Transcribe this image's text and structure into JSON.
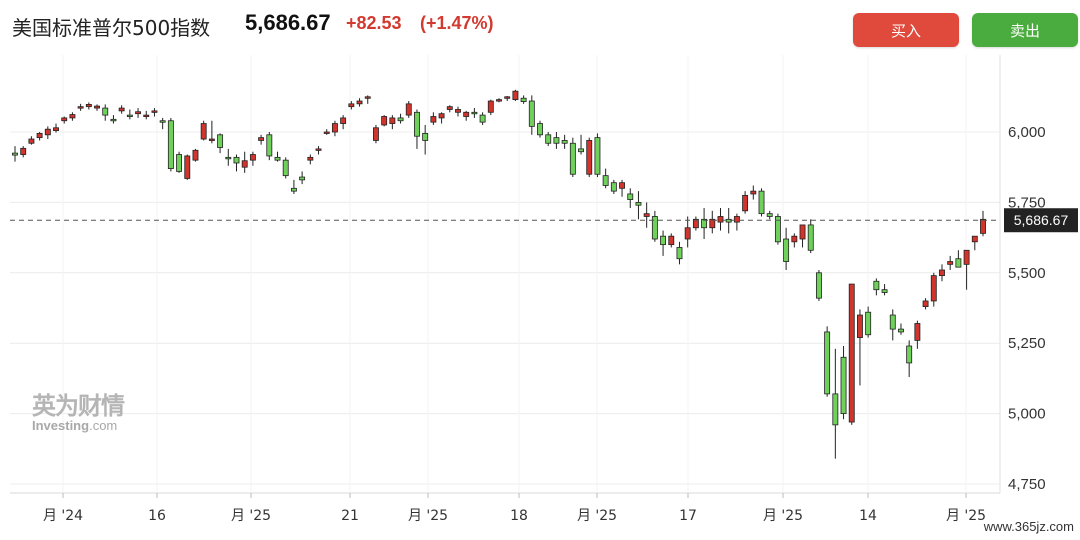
{
  "header": {
    "title": "美国标准普尔500指数",
    "price": "5,686.67",
    "change": "+82.53",
    "change_pct": "(+1.47%)",
    "up_color": "#d23a2f",
    "buy_label": "买入",
    "sell_label": "卖出"
  },
  "watermark": {
    "cn": "英为财情",
    "en_main": "Investing",
    "en_suffix": ".com"
  },
  "footer": {
    "site": "www.365jz.com"
  },
  "chart_data": {
    "type": "candlestick",
    "last_price_label": "5,686.67",
    "y_ticks": [
      "6,000",
      "5,750",
      "5,500",
      "5,250",
      "5,000",
      "4,750"
    ],
    "y_tick_values": [
      6000,
      5750,
      5500,
      5250,
      5000,
      4750
    ],
    "ylim": [
      4740,
      6200
    ],
    "x_tick_labels": [
      "月 '24",
      "16",
      "月 '25",
      "21",
      "月 '25",
      "18",
      "月 '25",
      "17",
      "月 '25",
      "14",
      "月 '25"
    ],
    "grid": true,
    "colors": {
      "up": "#d0342c",
      "down": "#6fd15b"
    },
    "candles": [
      [
        5925,
        5950,
        5895,
        5918
      ],
      [
        5920,
        5950,
        5910,
        5942
      ],
      [
        5960,
        5985,
        5955,
        5975
      ],
      [
        5980,
        6000,
        5970,
        5995
      ],
      [
        5990,
        6020,
        5975,
        6010
      ],
      [
        6005,
        6030,
        5998,
        6015
      ],
      [
        6040,
        6055,
        6030,
        6050
      ],
      [
        6050,
        6070,
        6040,
        6062
      ],
      [
        6085,
        6100,
        6075,
        6090
      ],
      [
        6090,
        6105,
        6080,
        6098
      ],
      [
        6085,
        6098,
        6075,
        6092
      ],
      [
        6085,
        6098,
        6040,
        6060
      ],
      [
        6045,
        6060,
        6030,
        6040
      ],
      [
        6075,
        6095,
        6065,
        6085
      ],
      [
        6060,
        6080,
        6045,
        6055
      ],
      [
        6065,
        6085,
        6050,
        6072
      ],
      [
        6055,
        6075,
        6045,
        6060
      ],
      [
        6070,
        6085,
        6055,
        6075
      ],
      [
        6040,
        6050,
        6010,
        6035
      ],
      [
        6040,
        6050,
        5860,
        5870
      ],
      [
        5920,
        5930,
        5855,
        5860
      ],
      [
        5835,
        5920,
        5830,
        5915
      ],
      [
        5900,
        5940,
        5895,
        5935
      ],
      [
        5975,
        6040,
        5970,
        6030
      ],
      [
        5970,
        6040,
        5960,
        5975
      ],
      [
        5990,
        5995,
        5925,
        5945
      ],
      [
        5910,
        5940,
        5880,
        5905
      ],
      [
        5910,
        5920,
        5860,
        5890
      ],
      [
        5875,
        5930,
        5855,
        5898
      ],
      [
        5900,
        5930,
        5880,
        5920
      ],
      [
        5970,
        5990,
        5955,
        5980
      ],
      [
        5990,
        6000,
        5900,
        5915
      ],
      [
        5910,
        5930,
        5895,
        5900
      ],
      [
        5900,
        5910,
        5835,
        5845
      ],
      [
        5800,
        5830,
        5780,
        5790
      ],
      [
        5840,
        5860,
        5815,
        5830
      ],
      [
        5900,
        5920,
        5885,
        5910
      ],
      [
        5935,
        5950,
        5920,
        5940
      ],
      [
        6000,
        6010,
        5990,
        6000
      ],
      [
        6000,
        6040,
        5985,
        6030
      ],
      [
        6030,
        6060,
        6010,
        6050
      ],
      [
        6090,
        6110,
        6080,
        6100
      ],
      [
        6100,
        6120,
        6090,
        6110
      ],
      [
        6120,
        6130,
        6100,
        6125
      ],
      [
        5970,
        6025,
        5960,
        6015
      ],
      [
        6025,
        6060,
        6020,
        6055
      ],
      [
        6030,
        6060,
        6010,
        6050
      ],
      [
        6050,
        6065,
        6030,
        6040
      ],
      [
        6060,
        6110,
        6050,
        6100
      ],
      [
        6070,
        6080,
        5940,
        5985
      ],
      [
        5995,
        6025,
        5920,
        5970
      ],
      [
        6035,
        6070,
        6025,
        6055
      ],
      [
        6050,
        6070,
        6030,
        6065
      ],
      [
        6080,
        6095,
        6070,
        6090
      ],
      [
        6070,
        6090,
        6055,
        6080
      ],
      [
        6055,
        6075,
        6040,
        6070
      ],
      [
        6070,
        6085,
        6050,
        6065
      ],
      [
        6060,
        6070,
        6025,
        6035
      ],
      [
        6070,
        6115,
        6060,
        6110
      ],
      [
        6110,
        6120,
        6105,
        6115
      ],
      [
        6120,
        6128,
        6110,
        6125
      ],
      [
        6115,
        6150,
        6110,
        6145
      ],
      [
        6120,
        6130,
        6100,
        6108
      ],
      [
        6110,
        6130,
        5990,
        6020
      ],
      [
        6030,
        6040,
        5980,
        5990
      ],
      [
        5990,
        6000,
        5950,
        5960
      ],
      [
        5980,
        6000,
        5940,
        5960
      ],
      [
        5970,
        5990,
        5940,
        5960
      ],
      [
        5960,
        5980,
        5840,
        5850
      ],
      [
        5940,
        5990,
        5920,
        5930
      ],
      [
        5850,
        5980,
        5840,
        5970
      ],
      [
        5980,
        5995,
        5840,
        5850
      ],
      [
        5845,
        5870,
        5800,
        5810
      ],
      [
        5820,
        5830,
        5780,
        5790
      ],
      [
        5800,
        5830,
        5770,
        5820
      ],
      [
        5780,
        5800,
        5730,
        5760
      ],
      [
        5750,
        5790,
        5690,
        5740
      ],
      [
        5700,
        5750,
        5660,
        5710
      ],
      [
        5700,
        5720,
        5610,
        5620
      ],
      [
        5630,
        5650,
        5560,
        5600
      ],
      [
        5600,
        5640,
        5590,
        5630
      ],
      [
        5590,
        5610,
        5530,
        5550
      ],
      [
        5620,
        5700,
        5590,
        5660
      ],
      [
        5660,
        5700,
        5650,
        5690
      ],
      [
        5690,
        5730,
        5620,
        5660
      ],
      [
        5660,
        5720,
        5640,
        5690
      ],
      [
        5680,
        5730,
        5650,
        5700
      ],
      [
        5690,
        5730,
        5640,
        5680
      ],
      [
        5680,
        5710,
        5650,
        5700
      ],
      [
        5720,
        5790,
        5710,
        5775
      ],
      [
        5780,
        5810,
        5760,
        5790
      ],
      [
        5790,
        5800,
        5700,
        5710
      ],
      [
        5710,
        5720,
        5690,
        5700
      ],
      [
        5700,
        5710,
        5600,
        5610
      ],
      [
        5620,
        5660,
        5510,
        5540
      ],
      [
        5610,
        5640,
        5590,
        5630
      ],
      [
        5620,
        5660,
        5590,
        5670
      ],
      [
        5670,
        5690,
        5570,
        5580
      ],
      [
        5500,
        5510,
        5400,
        5410
      ],
      [
        5290,
        5310,
        5060,
        5070
      ],
      [
        5070,
        5230,
        4840,
        4960
      ],
      [
        5200,
        5240,
        4980,
        5000
      ],
      [
        4970,
        5460,
        4960,
        5460
      ],
      [
        5270,
        5370,
        5100,
        5350
      ],
      [
        5360,
        5380,
        5270,
        5280
      ],
      [
        5470,
        5480,
        5420,
        5440
      ],
      [
        5440,
        5460,
        5420,
        5430
      ],
      [
        5350,
        5370,
        5260,
        5300
      ],
      [
        5300,
        5320,
        5280,
        5290
      ],
      [
        5240,
        5260,
        5130,
        5180
      ],
      [
        5260,
        5330,
        5230,
        5320
      ],
      [
        5380,
        5410,
        5370,
        5400
      ],
      [
        5400,
        5500,
        5380,
        5490
      ],
      [
        5490,
        5530,
        5470,
        5510
      ],
      [
        5530,
        5560,
        5510,
        5540
      ],
      [
        5550,
        5580,
        5520,
        5520
      ],
      [
        5530,
        5580,
        5440,
        5580
      ],
      [
        5610,
        5630,
        5580,
        5630
      ],
      [
        5640,
        5720,
        5630,
        5690
      ]
    ]
  }
}
